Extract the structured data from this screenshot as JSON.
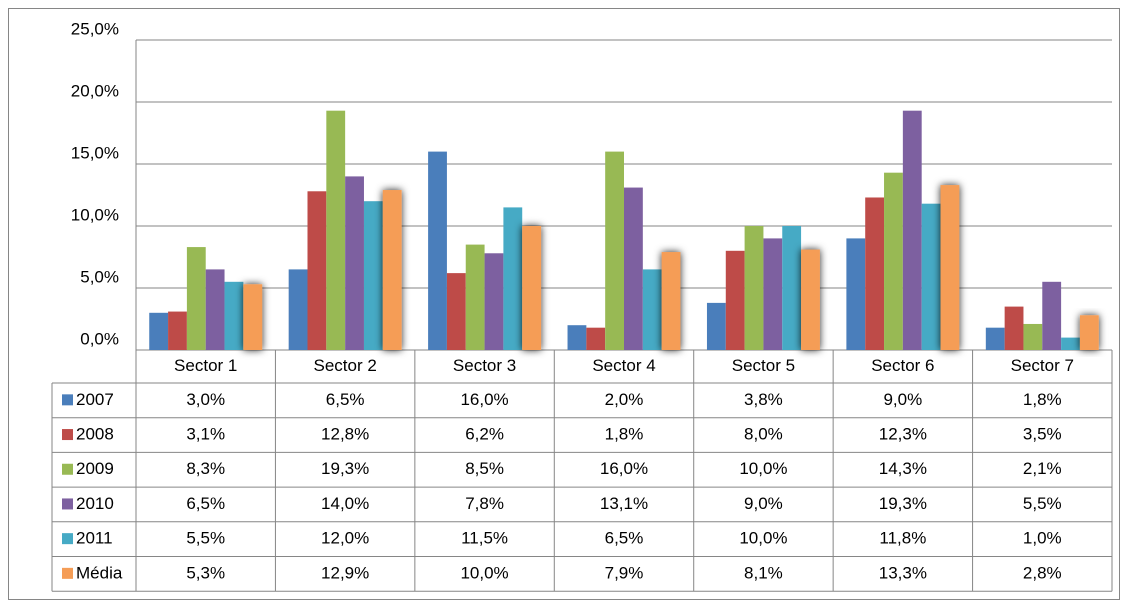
{
  "chart_data": {
    "type": "bar",
    "categories": [
      "Sector 1",
      "Sector 2",
      "Sector 3",
      "Sector 4",
      "Sector 5",
      "Sector 6",
      "Sector 7"
    ],
    "series": [
      {
        "name": "2007",
        "color": "#4a7ebb",
        "values": [
          3.0,
          6.5,
          16.0,
          2.0,
          3.8,
          9.0,
          1.8
        ],
        "value_labels": [
          "3,0%",
          "6,5%",
          "16,0%",
          "2,0%",
          "3,8%",
          "9,0%",
          "1,8%"
        ]
      },
      {
        "name": "2008",
        "color": "#be4b48",
        "values": [
          3.1,
          12.8,
          6.2,
          1.8,
          8.0,
          12.3,
          3.5
        ],
        "value_labels": [
          "3,1%",
          "12,8%",
          "6,2%",
          "1,8%",
          "8,0%",
          "12,3%",
          "3,5%"
        ]
      },
      {
        "name": "2009",
        "color": "#98b954",
        "values": [
          8.3,
          19.3,
          8.5,
          16.0,
          10.0,
          14.3,
          2.1
        ],
        "value_labels": [
          "8,3%",
          "19,3%",
          "8,5%",
          "16,0%",
          "10,0%",
          "14,3%",
          "2,1%"
        ]
      },
      {
        "name": "2010",
        "color": "#7d60a0",
        "values": [
          6.5,
          14.0,
          7.8,
          13.1,
          9.0,
          19.3,
          5.5
        ],
        "value_labels": [
          "6,5%",
          "14,0%",
          "7,8%",
          "13,1%",
          "9,0%",
          "19,3%",
          "5,5%"
        ]
      },
      {
        "name": "2011",
        "color": "#46aac5",
        "values": [
          5.5,
          12.0,
          11.5,
          6.5,
          10.0,
          11.8,
          1.0
        ],
        "value_labels": [
          "5,5%",
          "12,0%",
          "11,5%",
          "6,5%",
          "10,0%",
          "11,8%",
          "1,0%"
        ]
      },
      {
        "name": "Média",
        "color": "#f59d56",
        "values": [
          5.3,
          12.9,
          10.0,
          7.9,
          8.1,
          13.3,
          2.8
        ],
        "value_labels": [
          "5,3%",
          "12,9%",
          "10,0%",
          "7,9%",
          "8,1%",
          "13,3%",
          "2,8%"
        ]
      }
    ],
    "ylim": [
      0,
      25
    ],
    "yticks": [
      {
        "value": 0,
        "label": "0,0%"
      },
      {
        "value": 5,
        "label": "5,0%"
      },
      {
        "value": 10,
        "label": "10,0%"
      },
      {
        "value": 15,
        "label": "15,0%"
      },
      {
        "value": 20,
        "label": "20,0%"
      },
      {
        "value": 25,
        "label": "25,0%"
      }
    ],
    "grid": true
  }
}
